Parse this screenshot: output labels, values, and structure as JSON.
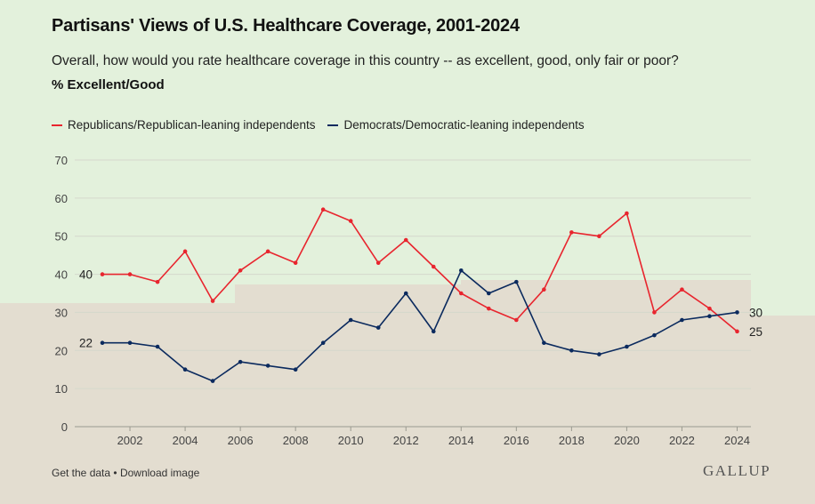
{
  "colors": {
    "republicans": "#e8252e",
    "democrats": "#0b2a5e",
    "grid": "#d4d8cc",
    "axis_text": "#444444",
    "bg_top": "#e3f1dc",
    "bg_bottom": "#e3ddd0"
  },
  "footer": {
    "get_data": "Get the data",
    "separator": "•",
    "download": "Download image",
    "logo": "GALLUP"
  },
  "chart_data": {
    "type": "line",
    "title": "Partisans' Views of U.S. Healthcare Coverage, 2001-2024",
    "subtitle": "Overall, how would you rate healthcare coverage in this country -- as excellent, good, only fair or poor?",
    "measure": "% Excellent/Good",
    "x": [
      2001,
      2002,
      2003,
      2004,
      2005,
      2006,
      2007,
      2008,
      2009,
      2010,
      2011,
      2012,
      2013,
      2014,
      2015,
      2016,
      2017,
      2018,
      2019,
      2020,
      2021,
      2022,
      2023,
      2024
    ],
    "xlim": [
      2000,
      2024.5
    ],
    "ylim": [
      0,
      70
    ],
    "yticks": [
      0,
      10,
      20,
      30,
      40,
      50,
      60,
      70
    ],
    "ytick_labels": [
      "0",
      "10",
      "20",
      "30",
      "40",
      "50",
      "60",
      "70"
    ],
    "xticks": [
      2002,
      2004,
      2006,
      2008,
      2010,
      2012,
      2014,
      2016,
      2018,
      2020,
      2022,
      2024
    ],
    "xtick_labels": [
      "2002",
      "2004",
      "2006",
      "2008",
      "2010",
      "2012",
      "2014",
      "2016",
      "2018",
      "2020",
      "2022",
      "2024"
    ],
    "grid": true,
    "legend_position": "top-left",
    "series": [
      {
        "key": "republicans",
        "name": "Republicans/Republican-leaning independents",
        "color": "#e8252e",
        "values": [
          40,
          40,
          38,
          46,
          33,
          41,
          46,
          43,
          57,
          54,
          43,
          49,
          42,
          35,
          31,
          28,
          36,
          51,
          50,
          56,
          30,
          36,
          31,
          25
        ],
        "start_label": "40",
        "end_label": "25"
      },
      {
        "key": "democrats",
        "name": "Democrats/Democratic-leaning independents",
        "color": "#0b2a5e",
        "values": [
          22,
          22,
          21,
          15,
          12,
          17,
          16,
          15,
          22,
          28,
          26,
          35,
          25,
          41,
          35,
          38,
          22,
          20,
          19,
          21,
          24,
          28,
          29,
          30
        ],
        "start_label": "22",
        "end_label": "30"
      }
    ]
  }
}
